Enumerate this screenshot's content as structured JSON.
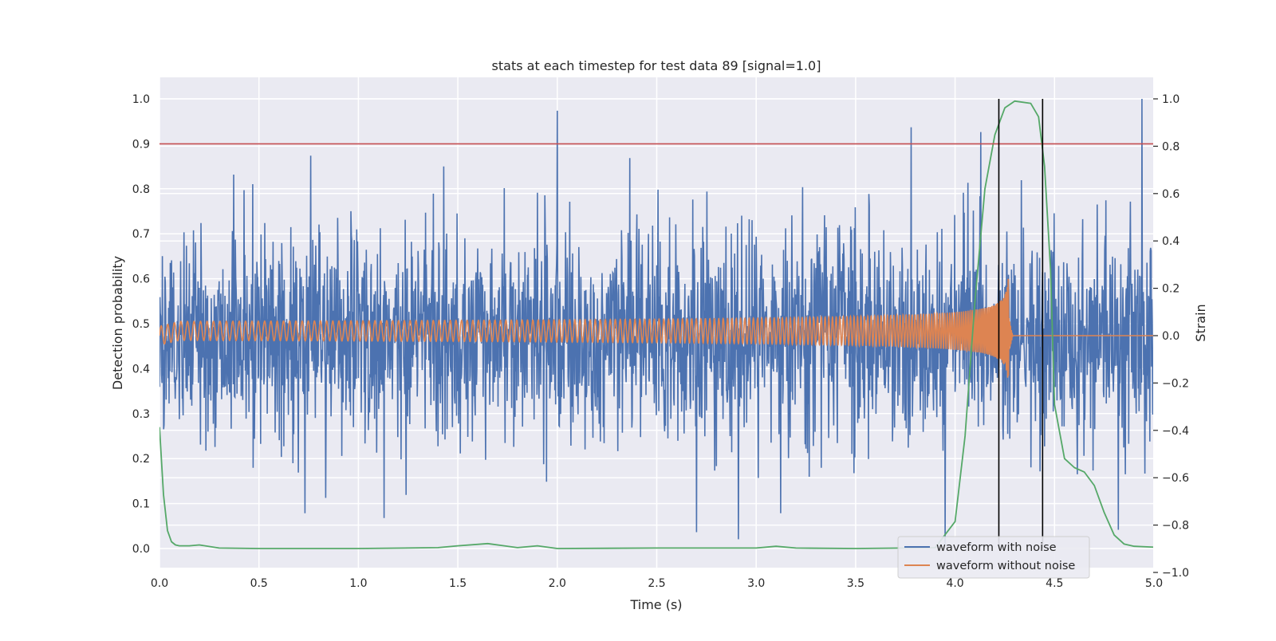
{
  "chart_data": {
    "type": "line",
    "title": "stats at each timestep for test data 89 [signal=1.0]",
    "xlabel": "Time (s)",
    "ylabel_left": "Detection probability",
    "ylabel_right": "Strain",
    "xlim": [
      0.0,
      5.0
    ],
    "ylim_left": [
      -0.04,
      1.05
    ],
    "ylim_right": [
      -1.0,
      1.0
    ],
    "grid": true,
    "x_ticks": [
      "0.0",
      "0.5",
      "1.0",
      "1.5",
      "2.0",
      "2.5",
      "3.0",
      "3.5",
      "4.0",
      "4.5",
      "5.0"
    ],
    "y_ticks_left": [
      "0.0",
      "0.1",
      "0.2",
      "0.3",
      "0.4",
      "0.5",
      "0.6",
      "0.7",
      "0.8",
      "0.9",
      "1.0"
    ],
    "y_ticks_right": [
      "−1.0",
      "−0.8",
      "−0.6",
      "−0.4",
      "−0.2",
      "0.0",
      "0.2",
      "0.4",
      "0.6",
      "0.8",
      "1.0"
    ],
    "legend_position": "bottom-right",
    "threshold": {
      "axis": "left",
      "value": 0.9,
      "color": "#c44e52"
    },
    "vertical_markers": {
      "x": [
        4.22,
        4.44
      ],
      "color": "#000000"
    },
    "series": [
      {
        "name": "waveform with noise",
        "axis": "right",
        "color": "#4c72b0",
        "x_range": [
          0.0,
          5.0
        ],
        "approx_amplitude": 0.3,
        "spikes": [
          {
            "x": 2.0,
            "y": 0.95
          },
          {
            "x": 4.94,
            "y": 1.0
          },
          {
            "x": 3.78,
            "y": 0.88
          },
          {
            "x": 4.13,
            "y": 0.86
          },
          {
            "x": 0.76,
            "y": 0.76
          },
          {
            "x": 2.91,
            "y": 0.82
          },
          {
            "x": 2.7,
            "y": -0.83
          },
          {
            "x": 2.91,
            "y": -0.86
          },
          {
            "x": 3.95,
            "y": -0.88
          },
          {
            "x": 4.82,
            "y": -0.82
          },
          {
            "x": 1.13,
            "y": -0.77
          }
        ]
      },
      {
        "name": "waveform without noise",
        "axis": "right",
        "color": "#dd8452",
        "chirp_start_amplitude": 0.04,
        "chirp_peak": {
          "x": 4.27,
          "y": 0.24
        },
        "chirp_trough": {
          "x": 4.27,
          "y": -0.17
        },
        "after_merger_value": 0.0
      },
      {
        "axis": "left",
        "color": "#55a868",
        "x": [
          0.0,
          0.02,
          0.04,
          0.06,
          0.08,
          0.1,
          0.15,
          0.2,
          0.3,
          0.5,
          1.0,
          1.4,
          1.5,
          1.65,
          1.8,
          1.9,
          2.0,
          2.5,
          3.0,
          3.1,
          3.2,
          3.5,
          3.9,
          4.0,
          4.05,
          4.1,
          4.15,
          4.2,
          4.25,
          4.3,
          4.38,
          4.42,
          4.45,
          4.48,
          4.5,
          4.55,
          4.6,
          4.65,
          4.7,
          4.75,
          4.8,
          4.85,
          4.9,
          5.0
        ],
        "values": [
          0.27,
          0.12,
          0.04,
          0.015,
          0.008,
          0.006,
          0.006,
          0.008,
          0.001,
          0.0,
          0.0,
          0.002,
          0.006,
          0.011,
          0.002,
          0.006,
          0.0,
          0.001,
          0.001,
          0.005,
          0.001,
          0.0,
          0.002,
          0.06,
          0.25,
          0.55,
          0.8,
          0.92,
          0.98,
          0.995,
          0.99,
          0.96,
          0.85,
          0.62,
          0.32,
          0.2,
          0.18,
          0.17,
          0.14,
          0.08,
          0.03,
          0.01,
          0.005,
          0.003
        ]
      }
    ]
  }
}
